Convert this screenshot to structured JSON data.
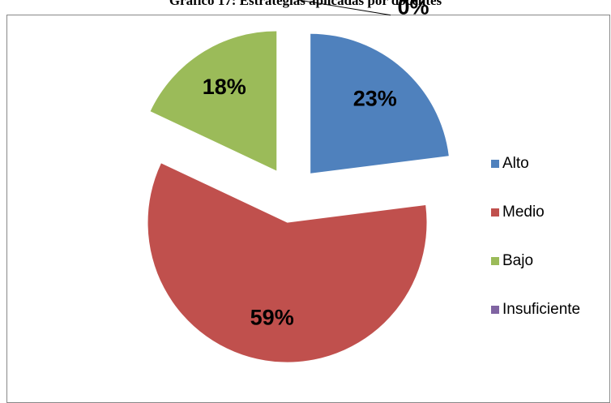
{
  "chart_data": {
    "type": "pie",
    "title": "Gráfico 17: Estrategias aplicadas por docentes",
    "categories": [
      "Alto",
      "Medio",
      "Bajo",
      "Insuficiente"
    ],
    "values": [
      23,
      59,
      18,
      0
    ],
    "value_labels": [
      "23%",
      "59%",
      "18%",
      "0%"
    ],
    "colors": [
      "#4f81bd",
      "#c0504d",
      "#9bbb59",
      "#8064a2"
    ],
    "legend": "right"
  }
}
